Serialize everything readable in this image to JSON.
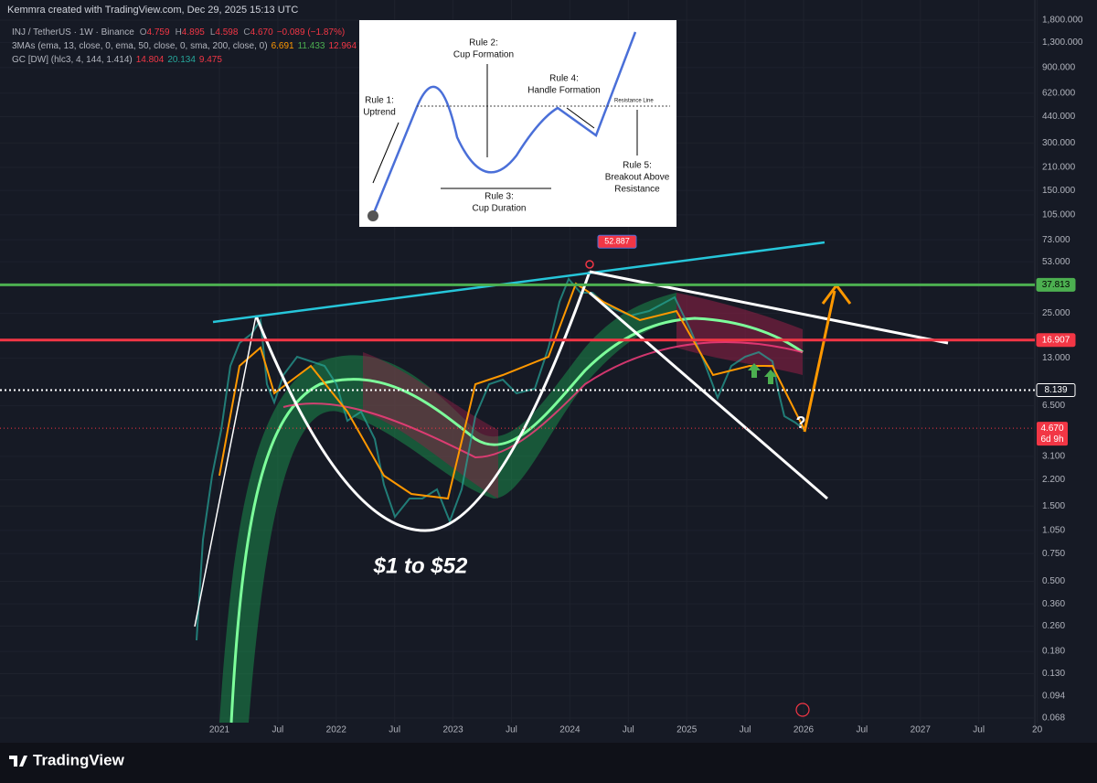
{
  "header": "Kemmra created with TradingView.com, Dec 29, 2025 15:13 UTC",
  "legend": [
    {
      "name": "INJ / TetherUS · 1W · Binance",
      "values": [
        {
          "text": "O",
          "color": "#9598a1"
        },
        {
          "text": "4.759",
          "color": "#f23645"
        },
        {
          "text": "H",
          "color": "#9598a1"
        },
        {
          "text": "4.895",
          "color": "#f23645"
        },
        {
          "text": "L",
          "color": "#9598a1"
        },
        {
          "text": "4.598",
          "color": "#f23645"
        },
        {
          "text": "C",
          "color": "#9598a1"
        },
        {
          "text": "4.670",
          "color": "#f23645"
        },
        {
          "text": "−0.089 (−1.87%)",
          "color": "#f23645"
        }
      ]
    },
    {
      "name": "3MAs (ema, 13, close, 0, ema, 50, close, 0, sma, 200, close, 0)",
      "values": [
        {
          "text": "6.691",
          "color": "#ff9800"
        },
        {
          "text": "11.433",
          "color": "#4caf50"
        },
        {
          "text": "12.964",
          "color": "#f23645"
        }
      ]
    },
    {
      "name": "GC [DW] (hlc3, 4, 144, 1.414)",
      "values": [
        {
          "text": "14.804",
          "color": "#f23645"
        },
        {
          "text": "20.134",
          "color": "#26a69a"
        },
        {
          "text": "9.475",
          "color": "#f23645"
        }
      ]
    }
  ],
  "inset": {
    "rule1": [
      "Rule 1:",
      "Uptrend"
    ],
    "rule2": [
      "Rule 2:",
      "Cup Formation"
    ],
    "rule3": [
      "Rule 3:",
      "Cup Duration"
    ],
    "rule4": [
      "Rule 4:",
      "Handle Formation"
    ],
    "rule5": [
      "Rule 5:",
      "Breakout Above",
      "Resistance"
    ],
    "resistance": "Resistance Line"
  },
  "annotation": "$1 to $52",
  "question": "?",
  "logo": "TradingView",
  "chart_data": {
    "type": "candlestick",
    "log_scale": true,
    "ylim": [
      0.068,
      1800
    ],
    "yticks": [
      {
        "value": 1800,
        "label": "1,800.000"
      },
      {
        "value": 1300,
        "label": "1,300.000"
      },
      {
        "value": 900,
        "label": "900.000"
      },
      {
        "value": 620,
        "label": "620.000"
      },
      {
        "value": 440,
        "label": "440.000"
      },
      {
        "value": 300,
        "label": "300.000"
      },
      {
        "value": 210,
        "label": "210.000"
      },
      {
        "value": 150,
        "label": "150.000"
      },
      {
        "value": 105,
        "label": "105.000"
      },
      {
        "value": 73,
        "label": "73.000"
      },
      {
        "value": 53,
        "label": "53.000"
      },
      {
        "value": 25,
        "label": "25.000"
      },
      {
        "value": 13,
        "label": "13.000"
      },
      {
        "value": 6.5,
        "label": "6.500"
      },
      {
        "value": 3.1,
        "label": "3.100"
      },
      {
        "value": 2.2,
        "label": "2.200"
      },
      {
        "value": 1.5,
        "label": "1.500"
      },
      {
        "value": 1.05,
        "label": "1.050"
      },
      {
        "value": 0.75,
        "label": "0.750"
      },
      {
        "value": 0.5,
        "label": "0.500"
      },
      {
        "value": 0.36,
        "label": "0.360"
      },
      {
        "value": 0.26,
        "label": "0.260"
      },
      {
        "value": 0.18,
        "label": "0.180"
      },
      {
        "value": 0.13,
        "label": "0.130"
      },
      {
        "value": 0.094,
        "label": "0.094"
      },
      {
        "value": 0.068,
        "label": "0.068"
      }
    ],
    "x_labels": [
      "2021",
      "Jul",
      "2022",
      "Jul",
      "2023",
      "Jul",
      "2024",
      "Jul",
      "2025",
      "Jul",
      "2026",
      "Jul",
      "2027",
      "Jul",
      "20"
    ],
    "levels": [
      {
        "value": 37.813,
        "label": "37.813",
        "color": "#4caf50",
        "style": "solid"
      },
      {
        "value": 16.907,
        "label": "16.907",
        "color": "#f23645",
        "style": "solid"
      },
      {
        "value": 8.139,
        "label": "8.139",
        "color": "#ffffff",
        "style": "dotted"
      }
    ],
    "last_price": {
      "value": 4.67,
      "label": "4.670",
      "countdown": "6d 9h",
      "color": "#f23645"
    },
    "peak": {
      "value": 52.887,
      "label": "52.887",
      "color": "#f23645"
    },
    "grid": true
  }
}
